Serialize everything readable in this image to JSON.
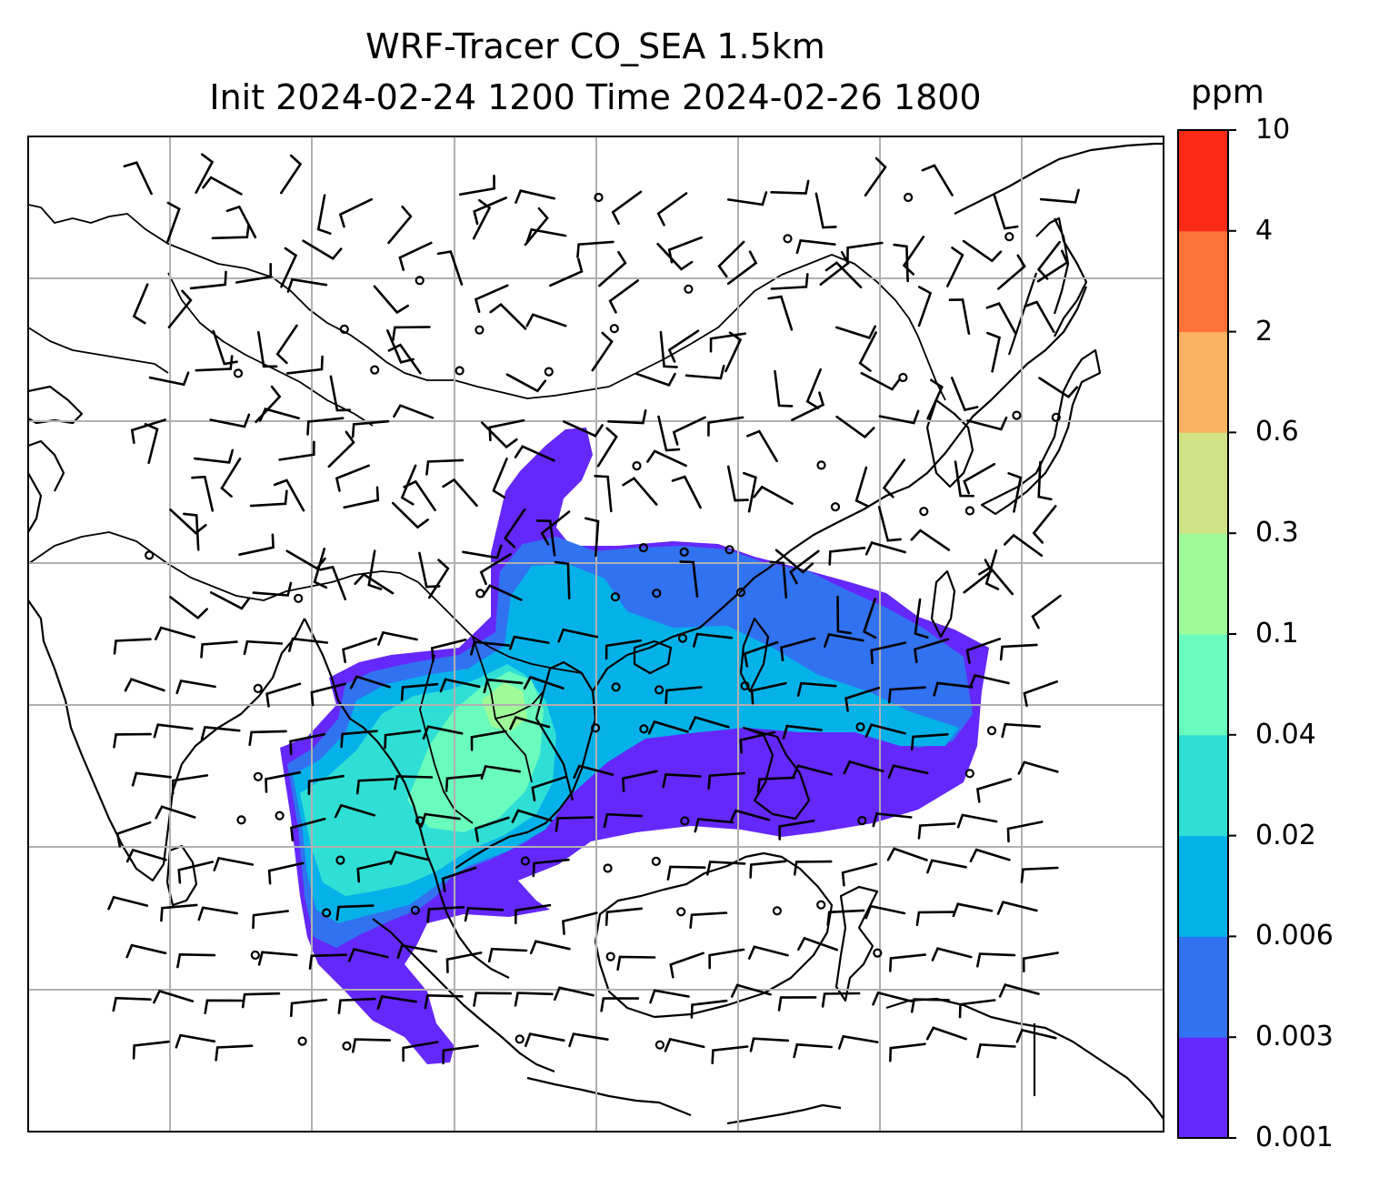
{
  "title_line1": "WRF-Tracer CO_SEA 1.5km",
  "title_line2": "Init 2024-02-24 1200 Time 2024-02-26 1800",
  "colorbar": {
    "unit": "ppm",
    "levels": [
      "0.001",
      "0.003",
      "0.006",
      "0.02",
      "0.04",
      "0.1",
      "0.3",
      "0.6",
      "2",
      "4",
      "10"
    ],
    "colors": [
      "#6528fb",
      "#3172f1",
      "#04b2e9",
      "#2fdfd5",
      "#6afcbc",
      "#9ffb97",
      "#cfe386",
      "#fcb262",
      "#fd7338",
      "#fb2a16"
    ]
  },
  "map": {
    "gridline_color": "#b0b0b0",
    "coastline_color": "#000000",
    "wind_barb_color": "#000000"
  }
}
